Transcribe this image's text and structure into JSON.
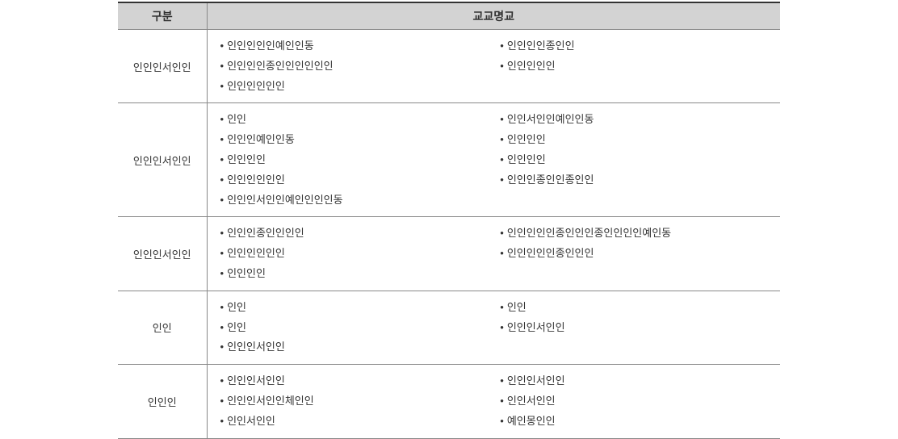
{
  "header": {
    "col1": "구분",
    "col2": "교교명교"
  },
  "rows": [
    {
      "label": "인인인서인인",
      "left": [
        "인인인인인예인인동",
        "인인인인종인인인인인인",
        "인인인인인인"
      ],
      "right": [
        "인인인인종인인",
        "인인인인인"
      ]
    },
    {
      "label": "인인인서인인",
      "left": [
        "인인",
        "인인인예인인동",
        "인인인인",
        "인인인인인인",
        "인인인서인인예인인인인동"
      ],
      "right": [
        "인인서인인예인인동",
        "인인인인",
        "인인인인",
        "인인인종인인종인인"
      ]
    },
    {
      "label": "인인인서인인",
      "left": [
        "인인인종인인인인",
        "인인인인인인",
        "인인인인"
      ],
      "right": [
        "인인인인인종인인인종인인인인예인동",
        "인인인인인종인인인"
      ]
    },
    {
      "label": "인인",
      "left": [
        "인인",
        "인인",
        "인인인서인인"
      ],
      "right": [
        "인인",
        "인인인서인인"
      ]
    },
    {
      "label": "인인인",
      "left": [
        "인인인서인인",
        "인인인서인인체인인",
        "인인서인인"
      ],
      "right": [
        "인인인서인인",
        "인인서인인",
        "예인몽인인"
      ]
    }
  ],
  "style": {
    "header_bg": "#d3d3d3",
    "border_color": "#888888",
    "top_border_color": "#333333",
    "text_color": "#333333",
    "bullet": "•"
  }
}
